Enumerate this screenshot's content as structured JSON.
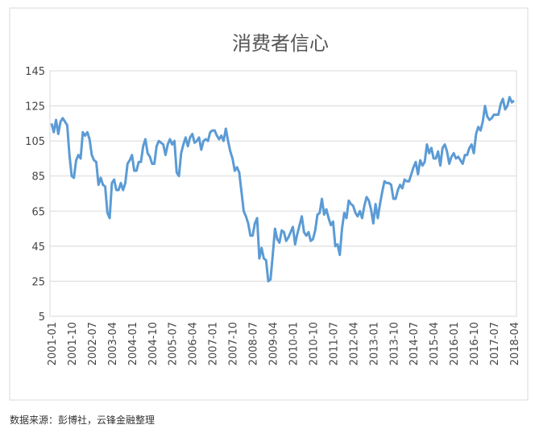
{
  "chart_data": {
    "type": "line",
    "title": "消费者信心",
    "source": "数据来源：彭博社，云锋金融整理",
    "categories": [
      "2001-01",
      null,
      null,
      null,
      null,
      null,
      null,
      null,
      null,
      "2001-10",
      null,
      null,
      null,
      null,
      null,
      null,
      null,
      null,
      "2002-07",
      null,
      null,
      null,
      null,
      null,
      null,
      null,
      null,
      "2003-04",
      null,
      null,
      null,
      null,
      null,
      null,
      null,
      null,
      "2004-01",
      null,
      null,
      null,
      null,
      null,
      null,
      null,
      null,
      "2004-10",
      null,
      null,
      null,
      null,
      null,
      null,
      null,
      null,
      "2005-07",
      null,
      null,
      null,
      null,
      null,
      null,
      null,
      null,
      "2006-04",
      null,
      null,
      null,
      null,
      null,
      null,
      null,
      null,
      "2007-01",
      null,
      null,
      null,
      null,
      null,
      null,
      null,
      null,
      "2007-10",
      null,
      null,
      null,
      null,
      null,
      null,
      null,
      null,
      "2008-07",
      null,
      null,
      null,
      null,
      null,
      null,
      null,
      null,
      "2009-04",
      null,
      null,
      null,
      null,
      null,
      null,
      null,
      null,
      "2010-01",
      null,
      null,
      null,
      null,
      null,
      null,
      null,
      null,
      "2010-10",
      null,
      null,
      null,
      null,
      null,
      null,
      null,
      null,
      "2011-07",
      null,
      null,
      null,
      null,
      null,
      null,
      null,
      null,
      "2012-04",
      null,
      null,
      null,
      null,
      null,
      null,
      null,
      null,
      "2013-01",
      null,
      null,
      null,
      null,
      null,
      null,
      null,
      null,
      "2013-10",
      null,
      null,
      null,
      null,
      null,
      null,
      null,
      null,
      "2014-07",
      null,
      null,
      null,
      null,
      null,
      null,
      null,
      null,
      "2015-04",
      null,
      null,
      null,
      null,
      null,
      null,
      null,
      null,
      "2016-01",
      null,
      null,
      null,
      null,
      null,
      null,
      null,
      null,
      "2016-10",
      null,
      null,
      null,
      null,
      null,
      null,
      null,
      null,
      "2017-07",
      null,
      null,
      null,
      null,
      null,
      null,
      null,
      null,
      "2018-04"
    ],
    "series": [
      {
        "color": "#5b9bd5",
        "values": [
          115,
          110,
          117,
          109,
          116,
          118,
          116,
          114,
          97,
          85,
          84,
          94,
          97,
          95,
          110,
          108,
          110,
          106,
          97,
          94,
          93,
          80,
          84,
          80,
          79,
          64,
          61,
          81,
          83,
          77,
          77,
          81,
          77,
          81,
          92,
          94,
          97,
          88,
          88,
          93,
          93,
          102,
          106,
          98,
          96,
          92,
          92,
          102,
          105,
          104,
          103,
          97,
          103,
          106,
          103,
          105,
          87,
          85,
          98,
          103,
          107,
          102,
          107,
          109,
          104,
          105,
          107,
          100,
          105,
          106,
          105,
          110,
          111,
          111,
          108,
          106,
          108,
          105,
          112,
          105,
          99,
          95,
          88,
          90,
          87,
          76,
          65,
          62,
          58,
          51,
          51,
          58,
          61,
          38,
          44,
          38,
          37,
          25,
          26,
          40,
          55,
          49,
          47,
          54,
          53,
          48,
          50,
          53,
          56,
          46,
          52,
          57,
          62,
          53,
          51,
          53,
          48,
          49,
          54,
          63,
          64,
          72,
          63,
          66,
          61,
          57,
          59,
          45,
          46,
          40,
          55,
          64,
          61,
          71,
          69,
          68,
          64,
          62,
          65,
          61,
          68,
          73,
          71,
          66,
          58,
          69,
          61,
          69,
          76,
          82,
          81,
          81,
          80,
          72,
          72,
          77,
          80,
          78,
          83,
          82,
          82,
          86,
          90,
          93,
          86,
          94,
          91,
          93,
          103,
          98,
          101,
          95,
          95,
          99,
          91,
          101,
          103,
          99,
          92,
          96,
          98,
          95,
          96,
          94,
          92,
          97,
          97,
          101,
          103,
          98,
          109,
          113,
          111,
          116,
          125,
          119,
          117,
          118,
          120,
          120,
          120,
          126,
          129,
          123,
          125,
          130,
          127,
          128
        ]
      }
    ],
    "ylim": [
      5,
      145
    ],
    "yticks": [
      5,
      25,
      45,
      65,
      85,
      105,
      125,
      145
    ],
    "grid": true
  }
}
